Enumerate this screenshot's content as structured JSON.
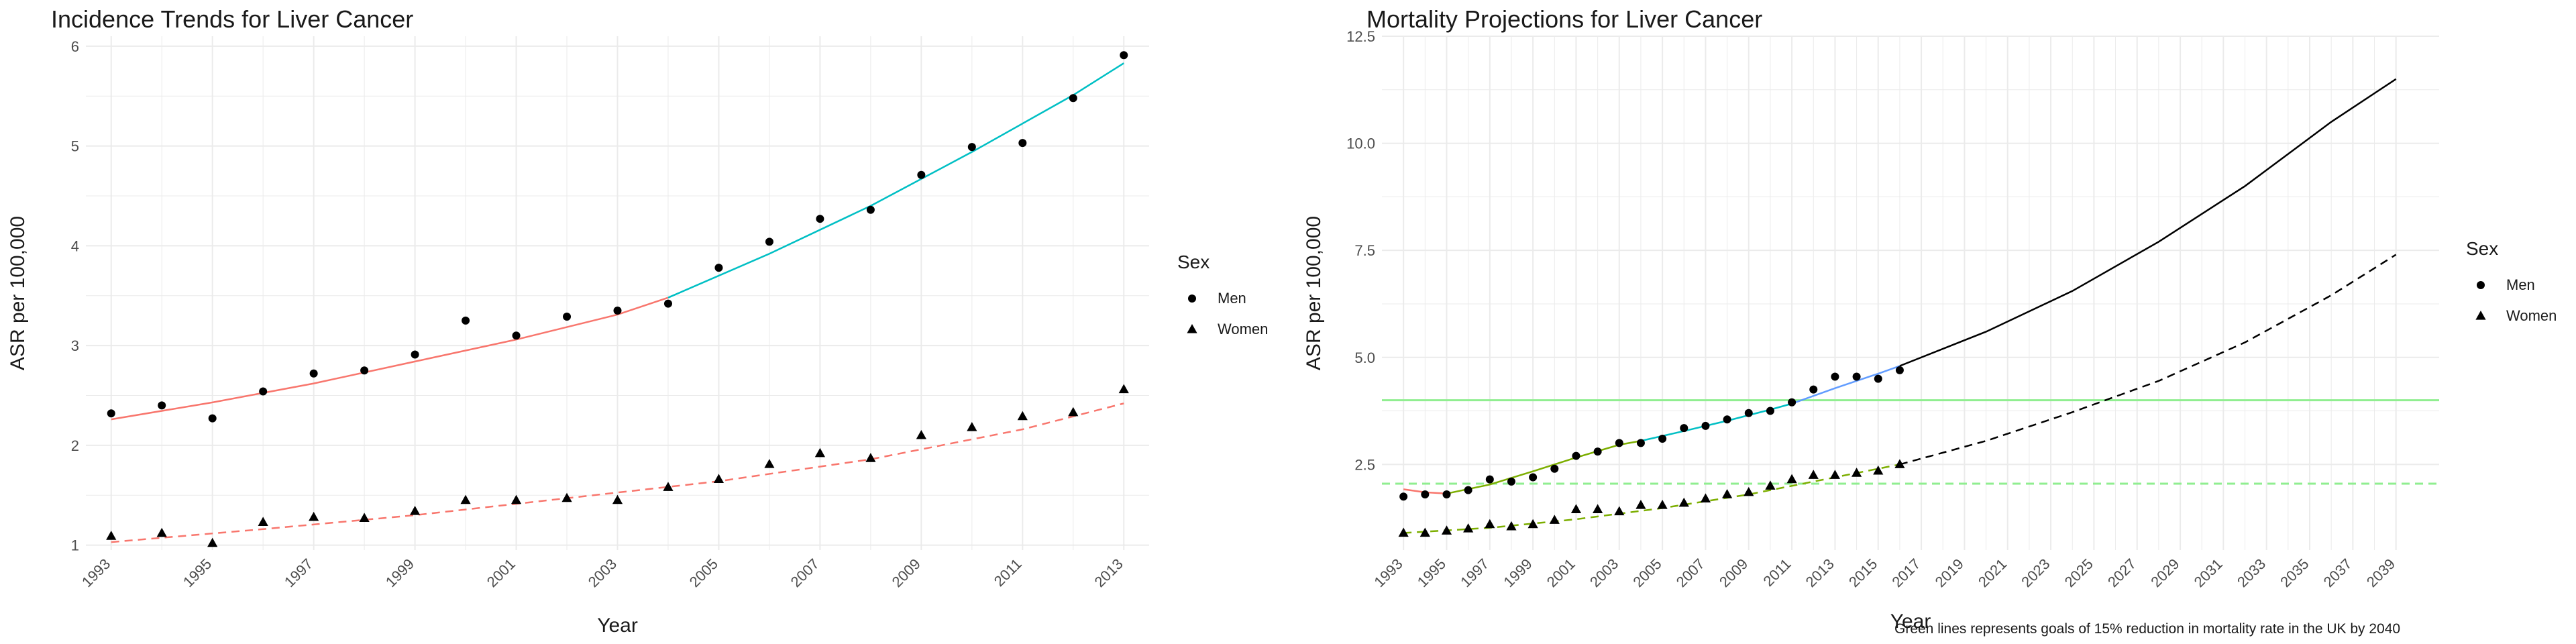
{
  "caption": "Green lines represents goals of 15% reduction in mortality rate in the UK by 2040",
  "colors": {
    "red": "#F8766D",
    "cyan": "#00BFC4",
    "green": "#7CAE00",
    "blue": "#619CFF",
    "black": "#000000",
    "goal": "#90EE90",
    "grid": "#EBEBEB"
  },
  "chart_data": [
    {
      "type": "scatter",
      "title": "Incidence Trends for Liver Cancer",
      "xlabel": "Year",
      "ylabel": "ASR per 100,000",
      "xlim": [
        1992.5,
        2013.5
      ],
      "ylim": [
        0.95,
        6.1
      ],
      "x_ticks": [
        "1993",
        "1995",
        "1997",
        "1999",
        "2001",
        "2003",
        "2005",
        "2007",
        "2009",
        "2011",
        "2013"
      ],
      "y_ticks": [
        "1",
        "2",
        "3",
        "4",
        "5",
        "6"
      ],
      "legend": {
        "title": "Sex",
        "placement": "right",
        "entries": [
          "Men",
          "Women"
        ]
      },
      "series": [
        {
          "name": "Men",
          "marker": "circle",
          "x": [
            1993,
            1994,
            1995,
            1996,
            1997,
            1998,
            1999,
            2000,
            2001,
            2002,
            2003,
            2004,
            2005,
            2006,
            2007,
            2008,
            2009,
            2010,
            2011,
            2012,
            2013
          ],
          "y": [
            2.32,
            2.4,
            2.27,
            2.54,
            2.72,
            2.75,
            2.91,
            3.25,
            3.1,
            3.29,
            3.35,
            3.42,
            3.78,
            4.04,
            4.27,
            4.36,
            4.71,
            4.99,
            5.03,
            5.48,
            5.91
          ]
        },
        {
          "name": "Women",
          "marker": "triangle",
          "x": [
            1993,
            1994,
            1995,
            1996,
            1997,
            1998,
            1999,
            2000,
            2001,
            2002,
            2003,
            2004,
            2005,
            2006,
            2007,
            2008,
            2009,
            2010,
            2011,
            2012,
            2013
          ],
          "y": [
            1.09,
            1.12,
            1.02,
            1.23,
            1.28,
            1.27,
            1.34,
            1.45,
            1.45,
            1.47,
            1.45,
            1.58,
            1.66,
            1.81,
            1.92,
            1.87,
            2.1,
            2.18,
            2.29,
            2.33,
            2.56
          ]
        }
      ],
      "trend_lines": [
        {
          "group": "Men",
          "dash": "solid",
          "color": "red",
          "x": [
            1993,
            1995,
            1997,
            1999,
            2001,
            2003,
            2004
          ],
          "y": [
            2.26,
            2.43,
            2.62,
            2.84,
            3.06,
            3.31,
            3.48
          ]
        },
        {
          "group": "Men",
          "dash": "solid",
          "color": "cyan",
          "x": [
            2004,
            2006,
            2008,
            2010,
            2012,
            2013
          ],
          "y": [
            3.48,
            3.92,
            4.4,
            4.94,
            5.51,
            5.83
          ]
        },
        {
          "group": "Women",
          "dash": "dashed",
          "color": "red",
          "x": [
            1993,
            1996,
            1999,
            2002,
            2005,
            2008,
            2011,
            2013
          ],
          "y": [
            1.03,
            1.16,
            1.3,
            1.47,
            1.64,
            1.86,
            2.16,
            2.42
          ]
        }
      ]
    },
    {
      "type": "scatter",
      "title": "Mortality Projections for Liver Cancer",
      "xlabel": "Year",
      "ylabel": "ASR per 100,000",
      "xlim": [
        1992,
        2041
      ],
      "ylim": [
        0.5,
        12.5
      ],
      "x_ticks": [
        "1993",
        "1995",
        "1997",
        "1999",
        "2001",
        "2003",
        "2005",
        "2007",
        "2009",
        "2011",
        "2013",
        "2015",
        "2017",
        "2019",
        "2021",
        "2023",
        "2025",
        "2027",
        "2029",
        "2031",
        "2033",
        "2035",
        "2037",
        "2039"
      ],
      "y_ticks": [
        "2.5",
        "5.0",
        "7.5",
        "10.0",
        "12.5"
      ],
      "legend": {
        "title": "Sex",
        "placement": "right",
        "entries": [
          "Men",
          "Women"
        ]
      },
      "series": [
        {
          "name": "Men",
          "marker": "circle",
          "x": [
            1993,
            1994,
            1995,
            1996,
            1997,
            1998,
            1999,
            2000,
            2001,
            2002,
            2003,
            2004,
            2005,
            2006,
            2007,
            2008,
            2009,
            2010,
            2011,
            2012,
            2013,
            2014,
            2015,
            2016
          ],
          "y": [
            1.75,
            1.8,
            1.8,
            1.9,
            2.15,
            2.1,
            2.2,
            2.4,
            2.7,
            2.8,
            3.0,
            3.0,
            3.1,
            3.35,
            3.4,
            3.55,
            3.7,
            3.75,
            3.95,
            4.25,
            4.55,
            4.55,
            4.5,
            4.7
          ]
        },
        {
          "name": "Women",
          "marker": "triangle",
          "x": [
            1993,
            1994,
            1995,
            1996,
            1997,
            1998,
            1999,
            2000,
            2001,
            2002,
            2003,
            2004,
            2005,
            2006,
            2007,
            2008,
            2009,
            2010,
            2011,
            2012,
            2013,
            2014,
            2015,
            2016
          ],
          "y": [
            0.9,
            0.9,
            0.95,
            1.0,
            1.1,
            1.05,
            1.1,
            1.2,
            1.45,
            1.45,
            1.4,
            1.55,
            1.55,
            1.6,
            1.7,
            1.8,
            1.85,
            2.0,
            2.15,
            2.25,
            2.25,
            2.3,
            2.35,
            2.5
          ]
        }
      ],
      "trend_lines": [
        {
          "group": "Men",
          "dash": "solid",
          "color": "red",
          "x": [
            1993,
            1994,
            1995
          ],
          "y": [
            1.92,
            1.85,
            1.82
          ]
        },
        {
          "group": "Men",
          "dash": "solid",
          "color": "green",
          "x": [
            1995,
            1997,
            1999,
            2001,
            2003,
            2004
          ],
          "y": [
            1.82,
            2.03,
            2.34,
            2.66,
            2.96,
            3.05
          ]
        },
        {
          "group": "Men",
          "dash": "solid",
          "color": "cyan",
          "x": [
            2004,
            2006,
            2008,
            2010,
            2011
          ],
          "y": [
            3.05,
            3.28,
            3.52,
            3.78,
            3.92
          ]
        },
        {
          "group": "Men",
          "dash": "solid",
          "color": "blue",
          "x": [
            2011,
            2013,
            2015,
            2016
          ],
          "y": [
            3.92,
            4.28,
            4.62,
            4.8
          ]
        },
        {
          "group": "Men",
          "dash": "solid",
          "color": "black",
          "x": [
            2016,
            2020,
            2024,
            2028,
            2032,
            2036,
            2039
          ],
          "y": [
            4.8,
            5.6,
            6.55,
            7.7,
            9.0,
            10.5,
            11.5
          ]
        },
        {
          "group": "Women",
          "dash": "dashed",
          "color": "green",
          "x": [
            1993,
            1997,
            2001,
            2005,
            2009,
            2013,
            2016
          ],
          "y": [
            0.9,
            1.02,
            1.22,
            1.48,
            1.8,
            2.2,
            2.5
          ]
        },
        {
          "group": "Women",
          "dash": "dashed",
          "color": "black",
          "x": [
            2016,
            2020,
            2024,
            2028,
            2032,
            2036,
            2039
          ],
          "y": [
            2.5,
            3.05,
            3.72,
            4.45,
            5.35,
            6.45,
            7.4
          ]
        }
      ],
      "reference_lines": [
        {
          "group": "Men",
          "dash": "solid",
          "color": "goal",
          "y": 4.0
        },
        {
          "group": "Women",
          "dash": "dashed",
          "color": "goal",
          "y": 2.05
        }
      ]
    }
  ]
}
